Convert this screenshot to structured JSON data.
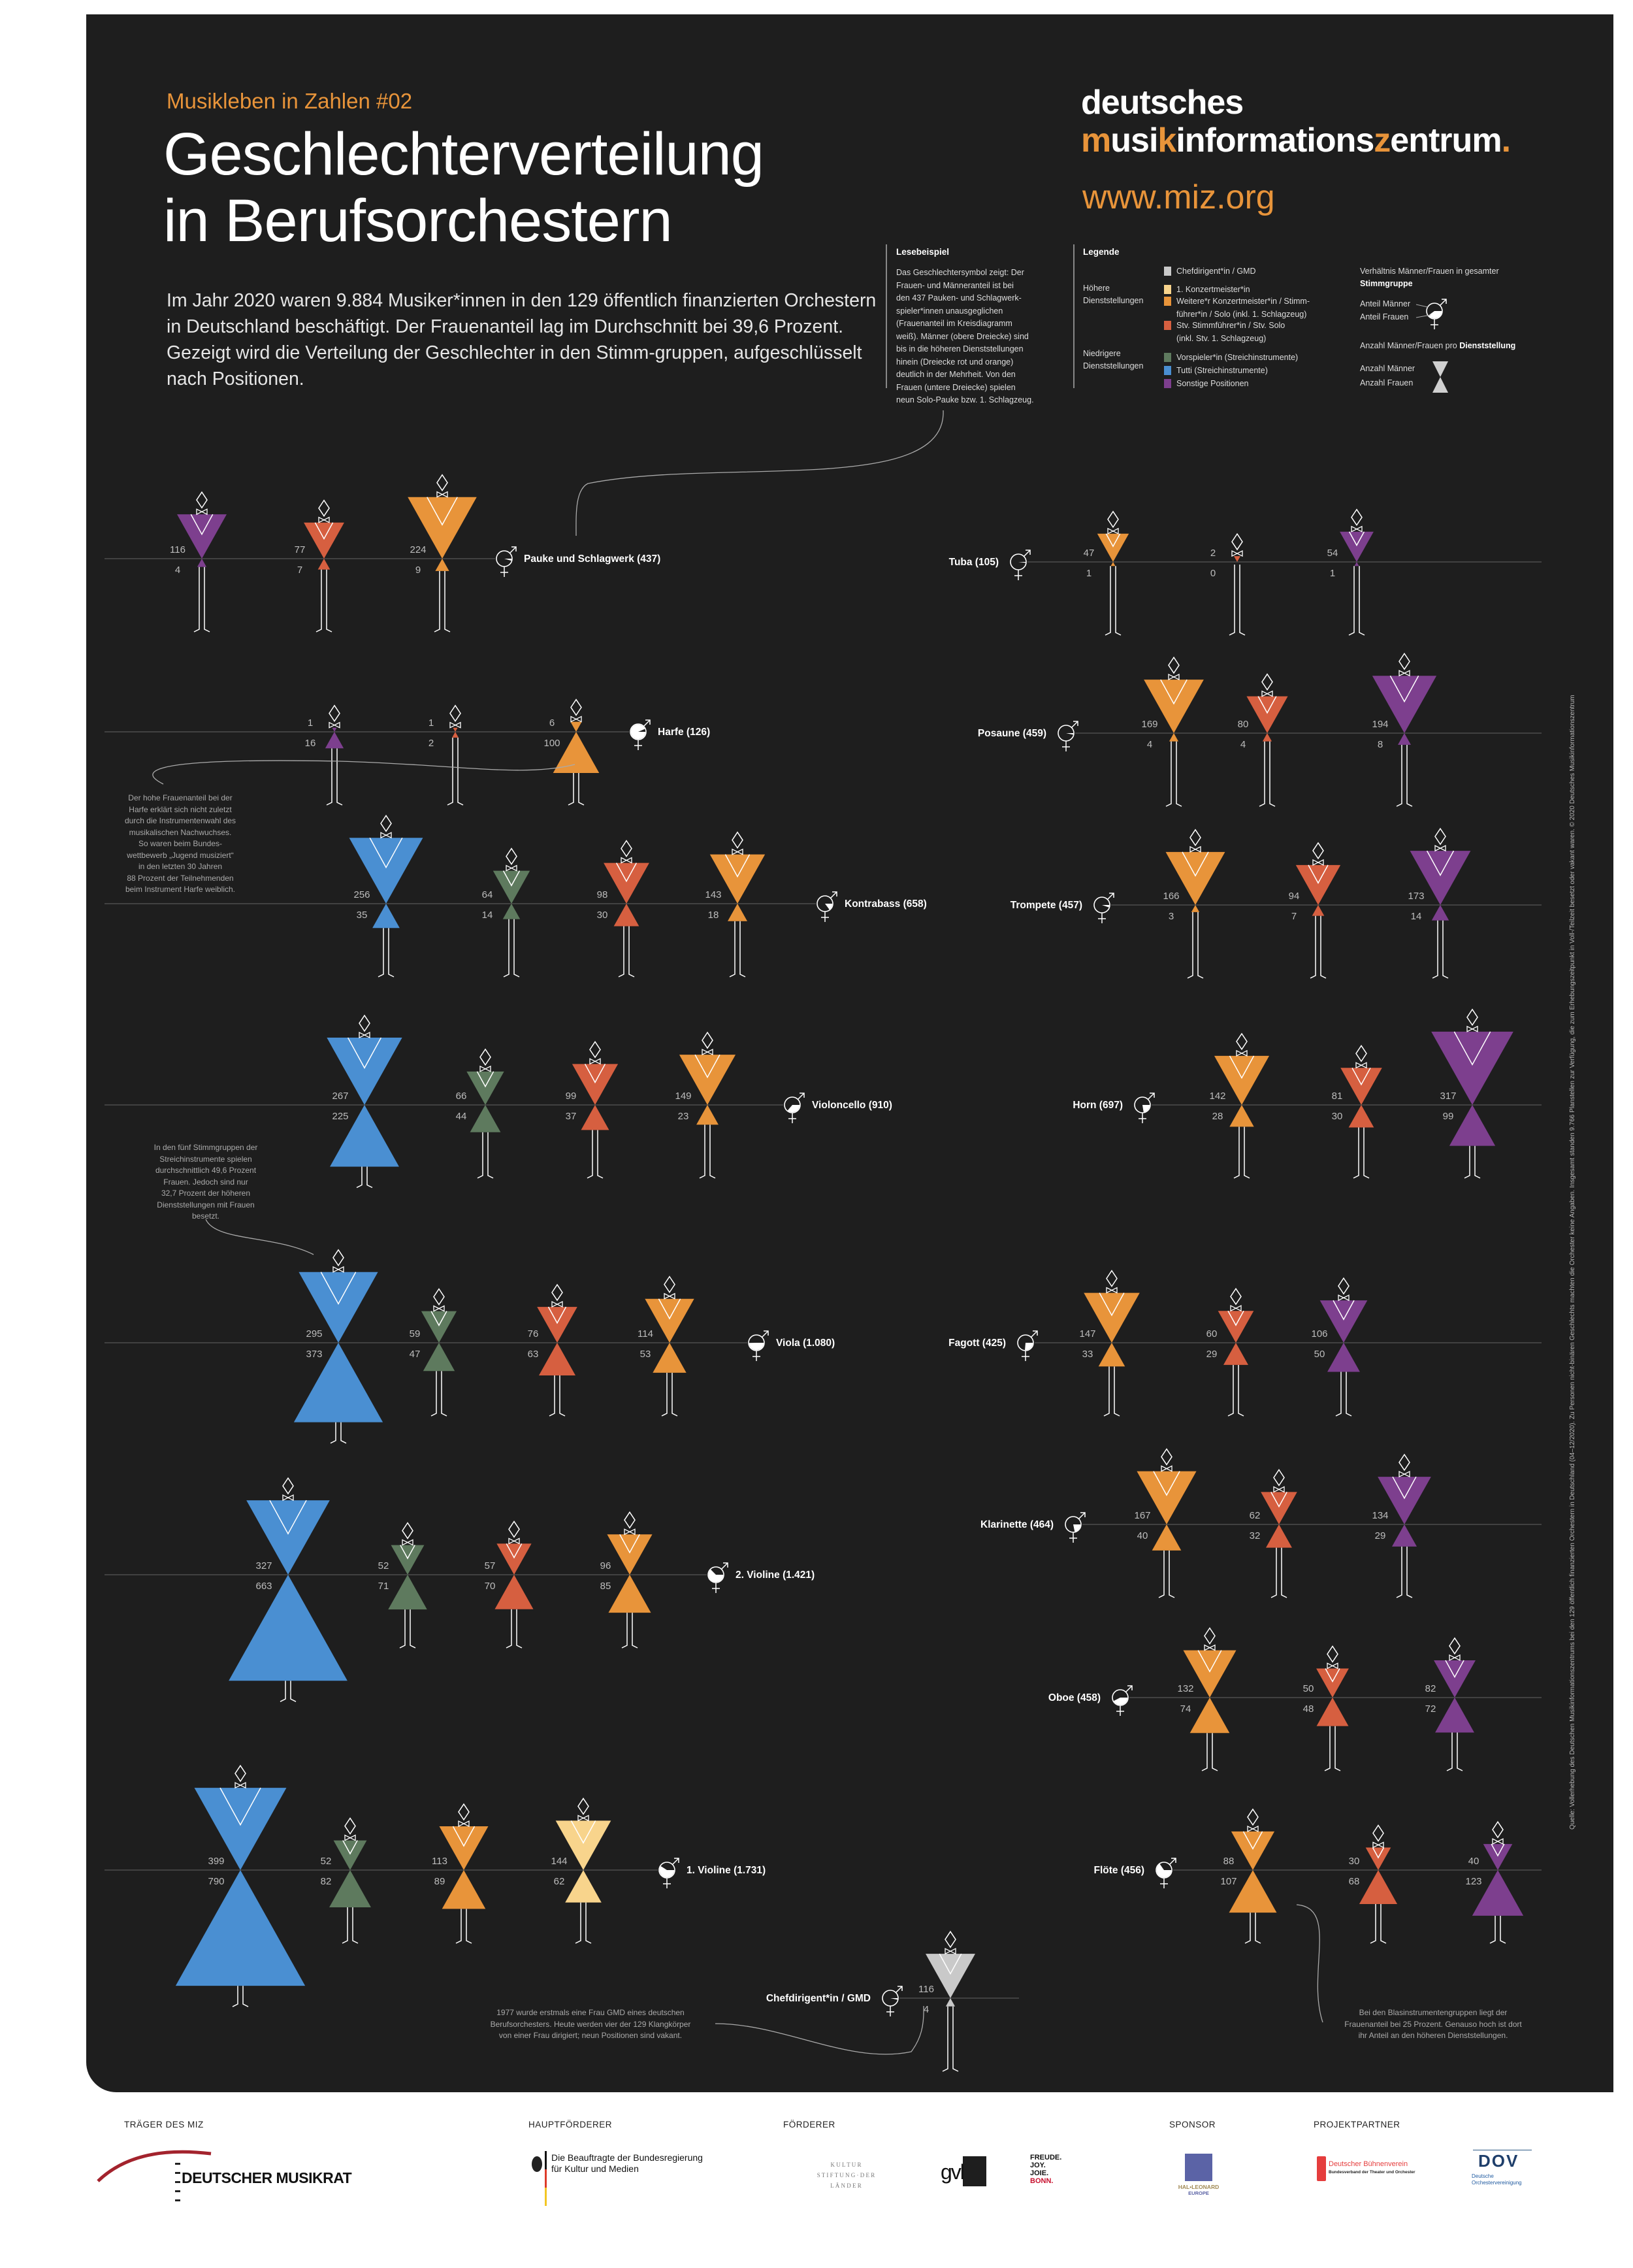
{
  "header": {
    "kicker": "Musikleben in Zahlen #02",
    "title": "Geschlechterverteilung\nin Berufsorchestern",
    "intro": "Im Jahr 2020 waren 9.884 Musiker*innen in den 129 öffentlich finanzierten Orchestern in Deutschland beschäftigt. Der Frauenanteil lag im Durchschnitt bei 39,6 Prozent. Gezeigt wird die Verteilung der Geschlechter in den Stimm-gruppen, aufgeschlüsselt nach Positionen."
  },
  "logo": {
    "line1": "deutsches",
    "line2": "musikinformationszentrum.",
    "url": "www.miz.org"
  },
  "reading_example": {
    "title": "Lesebeispiel",
    "text": "Das Geschlechtersymbol zeigt: Der\nFrauen- und Männeranteil ist bei\nden 437 Pauken- und Schlagwerk-\nspieler*innen unausgeglichen\n(Frauenanteil im Kreisdiagramm\nweiß). Männer (obere Dreiecke) sind\nbis in die höheren Dienststellungen\nhinein (Dreiecke rot und orange)\ndeutlich in der Mehrheit. Von den\nFrauen (untere Dreiecke) spielen\nneun Solo-Pauke bzw. 1. Schlagzeug."
  },
  "legend": {
    "title": "Legende",
    "higher": "Höhere\nDienststellungen",
    "lower": "Niedrigere\nDienststellungen",
    "items": [
      {
        "key": "chef",
        "label": "Chefdirigent*in / GMD",
        "color": "#c9c9c9"
      },
      {
        "key": "konz1",
        "label": "1. Konzertmeister*in",
        "color": "#f8d48c"
      },
      {
        "key": "weitere",
        "label": "Weitere*r Konzertmeister*in  / Stimm-\nführer*in / Solo (inkl. 1. Schlagzeug)",
        "color": "#e8943a"
      },
      {
        "key": "stv",
        "label": "Stv. Stimmführer*in / Stv. Solo\n(inkl. Stv. 1. Schlagzeug)",
        "color": "#d65f40"
      },
      {
        "key": "vorspieler",
        "label": "Vorspieler*in (Streichinstrumente)",
        "color": "#5e7a5e"
      },
      {
        "key": "tutti",
        "label": "Tutti (Streichinstrumente)",
        "color": "#4a8fd2"
      },
      {
        "key": "sonstige",
        "label": "Sonstige Positionen",
        "color": "#7d3f8e"
      }
    ],
    "ratio_title": "Verhältnis Männer/Frauen in gesamter",
    "ratio_title_bold": "Stimmgruppe",
    "share_men": "Anteil Männer",
    "share_women": "Anteil Frauen",
    "count_title": "Anzahl Männer/Frauen pro",
    "count_title_bold": "Dienststellung",
    "count_men": "Anzahl Männer",
    "count_women": "Anzahl Frauen"
  },
  "notes": {
    "harp": "Der hohe Frauenanteil bei der\nHarfe erklärt sich nicht zuletzt\ndurch die Instrumentenwahl des\nmusikalischen Nachwuchses.\nSo waren beim Bundes-\nwettbewerb „Jugend musiziert“\nin den letzten 30 Jahren\n88 Prozent der Teilnehmenden\nbeim Instrument Harfe weiblich.",
    "strings": "In den fünf Stimmgruppen der\nStreichinstrumente spielen\ndurchschnittlich 49,6 Prozent\nFrauen. Jedoch sind nur\n32,7 Prozent der höheren\nDienststellungen mit Frauen\nbesetzt.",
    "conductor": "1977 wurde erstmals eine Frau GMD eines deutschen\nBerufsorchesters. Heute werden vier der 129 Klangkörper\nvon einer Frau dirigiert; neun Positionen sind vakant.",
    "winds": "Bei den Blasinstrumentengruppen liegt der\nFrauenanteil bei 25 Prozent. Genauso hoch ist dort\nihr Anteil an den höheren Dienststellungen."
  },
  "credits": "Quelle: Vollerhebung des Deutschen Musikinformationszentrums bei den 129 öffentlich finanzierten Orchestern in Deutschland (04–12/2020). Zu Personen nicht-binären Geschlechts machten die Orchester keine Angaben. Insgesamt standen 9.766 Planstellen zur Verfügung, die zum Erhebungszeitpunkt in Voll-/Teilzeit besetzt oder vakant waren.      © 2020 Deutsches Musikinformationszentrum",
  "chart_data": {
    "type": "pictogram-triangles",
    "groups": [
      {
        "label": "Pauke und Schlagwerk (437)",
        "positions": [
          {
            "role": "sonstige",
            "men": 116,
            "women": 4
          },
          {
            "role": "stv",
            "men": 77,
            "women": 7
          },
          {
            "role": "weitere",
            "men": 224,
            "women": 9
          }
        ]
      },
      {
        "label": "Harfe (126)",
        "positions": [
          {
            "role": "sonstige",
            "men": 1,
            "women": 16
          },
          {
            "role": "stv",
            "men": 1,
            "women": 2
          },
          {
            "role": "weitere",
            "men": 6,
            "women": 100
          }
        ]
      },
      {
        "label": "Kontrabass (658)",
        "positions": [
          {
            "role": "tutti",
            "men": 256,
            "women": 35
          },
          {
            "role": "vorspieler",
            "men": 64,
            "women": 14
          },
          {
            "role": "stv",
            "men": 98,
            "women": 30
          },
          {
            "role": "weitere",
            "men": 143,
            "women": 18
          }
        ]
      },
      {
        "label": "Violoncello (910)",
        "positions": [
          {
            "role": "tutti",
            "men": 267,
            "women": 225
          },
          {
            "role": "vorspieler",
            "men": 66,
            "women": 44
          },
          {
            "role": "stv",
            "men": 99,
            "women": 37
          },
          {
            "role": "weitere",
            "men": 149,
            "women": 23
          }
        ]
      },
      {
        "label": "Viola (1.080)",
        "positions": [
          {
            "role": "tutti",
            "men": 295,
            "women": 373
          },
          {
            "role": "vorspieler",
            "men": 59,
            "women": 47
          },
          {
            "role": "stv",
            "men": 76,
            "women": 63
          },
          {
            "role": "weitere",
            "men": 114,
            "women": 53
          }
        ]
      },
      {
        "label": "2. Violine (1.421)",
        "positions": [
          {
            "role": "tutti",
            "men": 327,
            "women": 663
          },
          {
            "role": "vorspieler",
            "men": 52,
            "women": 71
          },
          {
            "role": "stv",
            "men": 57,
            "women": 70
          },
          {
            "role": "weitere",
            "men": 96,
            "women": 85
          }
        ]
      },
      {
        "label": "1. Violine (1.731)",
        "positions": [
          {
            "role": "tutti",
            "men": 399,
            "women": 790
          },
          {
            "role": "vorspieler",
            "men": 52,
            "women": 82
          },
          {
            "role": "weitere",
            "men": 113,
            "women": 89
          },
          {
            "role": "konz1",
            "men": 144,
            "women": 62
          }
        ]
      },
      {
        "label": "Tuba (105)",
        "positions": [
          {
            "role": "weitere",
            "men": 47,
            "women": 1
          },
          {
            "role": "stv",
            "men": 2,
            "women": 0
          },
          {
            "role": "sonstige",
            "men": 54,
            "women": 1
          }
        ]
      },
      {
        "label": "Posaune (459)",
        "positions": [
          {
            "role": "weitere",
            "men": 169,
            "women": 4
          },
          {
            "role": "stv",
            "men": 80,
            "women": 4
          },
          {
            "role": "sonstige",
            "men": 194,
            "women": 8
          }
        ]
      },
      {
        "label": "Trompete (457)",
        "positions": [
          {
            "role": "weitere",
            "men": 166,
            "women": 3
          },
          {
            "role": "stv",
            "men": 94,
            "women": 7
          },
          {
            "role": "sonstige",
            "men": 173,
            "women": 14
          }
        ]
      },
      {
        "label": "Horn (697)",
        "positions": [
          {
            "role": "weitere",
            "men": 142,
            "women": 28
          },
          {
            "role": "stv",
            "men": 81,
            "women": 30
          },
          {
            "role": "sonstige",
            "men": 317,
            "women": 99
          }
        ]
      },
      {
        "label": "Fagott (425)",
        "positions": [
          {
            "role": "weitere",
            "men": 147,
            "women": 33
          },
          {
            "role": "stv",
            "men": 60,
            "women": 29
          },
          {
            "role": "sonstige",
            "men": 106,
            "women": 50
          }
        ]
      },
      {
        "label": "Klarinette (464)",
        "positions": [
          {
            "role": "weitere",
            "men": 167,
            "women": 40
          },
          {
            "role": "stv",
            "men": 62,
            "women": 32
          },
          {
            "role": "sonstige",
            "men": 134,
            "women": 29
          }
        ]
      },
      {
        "label": "Oboe (458)",
        "positions": [
          {
            "role": "weitere",
            "men": 132,
            "women": 74
          },
          {
            "role": "stv",
            "men": 50,
            "women": 48
          },
          {
            "role": "sonstige",
            "men": 82,
            "women": 72
          }
        ]
      },
      {
        "label": "Flöte (456)",
        "positions": [
          {
            "role": "weitere",
            "men": 88,
            "women": 107
          },
          {
            "role": "stv",
            "men": 30,
            "women": 68
          },
          {
            "role": "sonstige",
            "men": 40,
            "women": 123
          }
        ]
      },
      {
        "label": "Chefdirigent*in / GMD",
        "positions": [
          {
            "role": "chef",
            "men": 116,
            "women": 4
          }
        ]
      }
    ]
  },
  "footer": {
    "carrier": {
      "label": "TRÄGER DES MIZ",
      "logo": "DEUTSCHER MUSIKRAT"
    },
    "main_funder": {
      "label": "HAUPTFÖRDERER",
      "logo": "Die Beauftragte der Bundesregierung\nfür Kultur und Medien"
    },
    "funders": {
      "label": "FÖRDERER",
      "logo1": "K U L T U R\nS T I F T U N G · D E R\nL Ä N D E R",
      "logo2": "gvl",
      "logo3a": "FREUDE.\nJOY.\nJOIE.",
      "logo3b": "BONN."
    },
    "sponsor": {
      "label": "SPONSOR",
      "logo": "HAL•LEONARD",
      "logo_sub": "EUROPE"
    },
    "partners": {
      "label": "PROJEKTPARTNER",
      "logo1": "Deutscher Bühnenverein",
      "logo1_sub": "Bundesverband der Theater und Orchester",
      "logo2": "DOV",
      "logo2_sub": "Deutsche\nOrchestervereinigung"
    }
  }
}
